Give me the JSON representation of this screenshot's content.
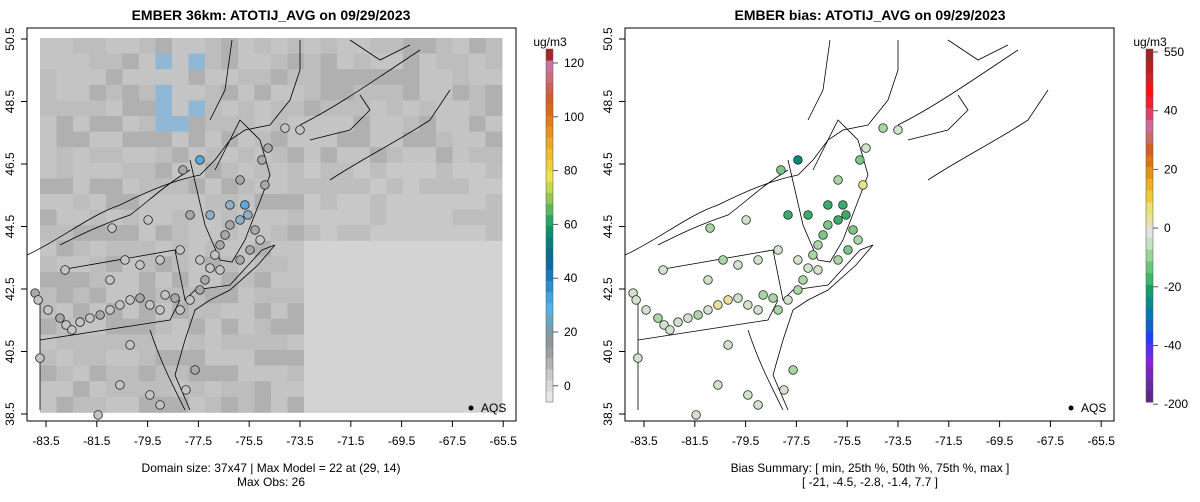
{
  "chart_data": [
    {
      "type": "heatmap",
      "title": "EMBER 36km: ATOTIJ_AVG on 09/29/2023",
      "xticks": [
        "-83.5",
        "-81.5",
        "-79.5",
        "-77.5",
        "-75.5",
        "-73.5",
        "-71.5",
        "-69.5",
        "-67.5",
        "-65.5"
      ],
      "yticks": [
        "50.5",
        "48.5",
        "46.5",
        "44.5",
        "42.5",
        "40.5",
        "38.5"
      ],
      "xlim": [
        -84,
        -65.2
      ],
      "ylim": [
        38.3,
        50.6
      ],
      "colorbar": {
        "unit": "ug/m3",
        "ticks": [
          "120",
          "100",
          "80",
          "60",
          "40",
          "20",
          "0"
        ],
        "range": [
          -7,
          125
        ]
      },
      "legend": {
        "label": "AQS",
        "placement": "bottom-right"
      },
      "footer": [
        "Domain size: 37x47 | Max Model = 22 at (29, 14)",
        "Max Obs: 26"
      ]
    },
    {
      "type": "scatter",
      "title": "EMBER bias: ATOTIJ_AVG on 09/29/2023",
      "xticks": [
        "-83.5",
        "-81.5",
        "-79.5",
        "-77.5",
        "-75.5",
        "-73.5",
        "-71.5",
        "-69.5",
        "-67.5",
        "-65.5"
      ],
      "yticks": [
        "50.5",
        "48.5",
        "46.5",
        "44.5",
        "42.5",
        "40.5",
        "38.5"
      ],
      "colorbar": {
        "unit": "ug/m3",
        "ticks": [
          "550",
          "40",
          "20",
          "0",
          "-20",
          "-40",
          "-200"
        ]
      },
      "legend": {
        "label": "AQS",
        "placement": "bottom-right"
      },
      "footer": [
        "Bias Summary: [ min, 25th %, 50th %, 75th %, max ]",
        "[ -21,   -4.5,   -2.8,   -1.4,   7.7 ]"
      ]
    }
  ],
  "stations": [
    [
      -83.93,
      42.37,
      12,
      -3
    ],
    [
      -83.81,
      42.15,
      10,
      -2
    ],
    [
      -83.42,
      41.83,
      11,
      -3
    ],
    [
      -82.95,
      41.57,
      12,
      -4
    ],
    [
      -82.71,
      41.35,
      9,
      -2
    ],
    [
      -82.48,
      41.19,
      10,
      -3
    ],
    [
      -82.16,
      41.44,
      11,
      -3
    ],
    [
      -81.77,
      41.57,
      10,
      -2
    ],
    [
      -81.37,
      41.67,
      12,
      -4
    ],
    [
      -80.98,
      41.83,
      9,
      -3
    ],
    [
      -80.59,
      41.99,
      10,
      2
    ],
    [
      -80.19,
      42.15,
      11,
      5
    ],
    [
      -79.8,
      42.21,
      12,
      -3
    ],
    [
      -79.41,
      41.99,
      10,
      -2
    ],
    [
      -79.01,
      41.83,
      11,
      -3
    ],
    [
      -78.81,
      42.31,
      10,
      -4
    ],
    [
      -78.42,
      42.21,
      12,
      -5
    ],
    [
      -78.22,
      41.83,
      11,
      -4
    ],
    [
      -77.83,
      42.15,
      10,
      -3
    ],
    [
      -77.44,
      42.47,
      13,
      -5
    ],
    [
      -77.24,
      42.79,
      12,
      -4
    ],
    [
      -77.04,
      43.17,
      11,
      -3
    ],
    [
      -76.85,
      43.59,
      10,
      -4
    ],
    [
      -76.65,
      43.91,
      12,
      -5
    ],
    [
      -76.45,
      44.23,
      13,
      -6
    ],
    [
      -76.26,
      44.55,
      14,
      -8
    ],
    [
      -75.86,
      44.71,
      18,
      -10
    ],
    [
      -75.55,
      44.87,
      16,
      -9
    ],
    [
      -75.27,
      44.39,
      12,
      -6
    ],
    [
      -75.07,
      44.07,
      11,
      -5
    ],
    [
      -75.47,
      43.75,
      13,
      -7
    ],
    [
      -75.86,
      43.43,
      12,
      -5
    ],
    [
      -76.65,
      43.11,
      10,
      -3
    ],
    [
      -77.44,
      43.43,
      11,
      -3
    ],
    [
      -78.22,
      43.75,
      9,
      -2
    ],
    [
      -79.01,
      43.43,
      10,
      -2
    ],
    [
      -79.8,
      43.27,
      11,
      -3
    ],
    [
      -80.39,
      43.43,
      10,
      -4
    ],
    [
      -80.98,
      42.79,
      9,
      -2
    ],
    [
      -82.75,
      43.11,
      10,
      -3
    ],
    [
      -80.9,
      44.45,
      9,
      -4
    ],
    [
      -79.48,
      44.71,
      10,
      -3
    ],
    [
      -78.11,
      46.31,
      14,
      -8
    ],
    [
      -77.44,
      46.63,
      26,
      -21
    ],
    [
      -77.83,
      44.87,
      15,
      -9
    ],
    [
      -77.04,
      44.87,
      16,
      -10
    ],
    [
      -76.26,
      45.19,
      20,
      -12
    ],
    [
      -75.67,
      45.19,
      22,
      -13
    ],
    [
      -74.88,
      45.83,
      14,
      7.7
    ],
    [
      -74.76,
      47.01,
      12,
      -3
    ],
    [
      -74.09,
      47.65,
      11,
      -4
    ],
    [
      -73.5,
      47.59,
      9,
      -2
    ],
    [
      -75.0,
      46.63,
      13,
      -6
    ],
    [
      -75.86,
      45.99,
      12,
      -5
    ],
    [
      -80.59,
      39.43,
      9,
      -1
    ],
    [
      -79.41,
      39.11,
      10,
      -2
    ],
    [
      -79.01,
      38.79,
      8,
      -1
    ],
    [
      -81.45,
      38.47,
      9,
      -1
    ],
    [
      -83.74,
      40.29,
      10,
      -2
    ],
    [
      -80.19,
      40.71,
      11,
      -2
    ],
    [
      -77.99,
      39.27,
      10,
      -3
    ],
    [
      -77.63,
      39.91,
      12,
      -4
    ]
  ],
  "colors": {
    "frame": "#000000",
    "land_outline": "#000000"
  }
}
